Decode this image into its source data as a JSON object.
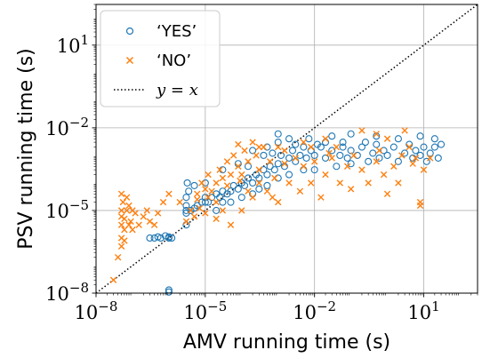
{
  "chart_data": {
    "type": "scatter",
    "xlabel": "AMV running time (s)",
    "ylabel": "PSV running time (s)",
    "x_scale": "log",
    "y_scale": "log",
    "xlim": [
      1e-08,
      300
    ],
    "ylim": [
      1e-08,
      300
    ],
    "x_ticks": [
      {
        "value": 1e-08,
        "base": "10",
        "exp": "−8"
      },
      {
        "value": 1e-05,
        "base": "10",
        "exp": "−5"
      },
      {
        "value": 0.01,
        "base": "10",
        "exp": "−2"
      },
      {
        "value": 10,
        "base": "10",
        "exp": "1"
      }
    ],
    "y_ticks": [
      {
        "value": 1e-08,
        "base": "10",
        "exp": "−8"
      },
      {
        "value": 1e-05,
        "base": "10",
        "exp": "−5"
      },
      {
        "value": 0.01,
        "base": "10",
        "exp": "−2"
      },
      {
        "value": 10,
        "base": "10",
        "exp": "1"
      }
    ],
    "grid": true,
    "legend_position": "top-left",
    "series": [
      {
        "name": "‘YES’",
        "marker": "circle",
        "color": "#1f77b4",
        "points": [
          [
            1e-06,
            1.1e-08
          ],
          [
            1e-06,
            1.3e-08
          ],
          [
            3e-07,
            1e-06
          ],
          [
            4e-07,
            1e-06
          ],
          [
            5e-07,
            1.1e-06
          ],
          [
            6e-07,
            1e-06
          ],
          [
            8e-07,
            1.2e-06
          ],
          [
            1e-06,
            1e-06
          ],
          [
            1e-06,
            1.1e-06
          ],
          [
            1.2e-06,
            1e-06
          ],
          [
            3e-06,
            3e-06
          ],
          [
            3e-06,
            8e-06
          ],
          [
            3e-06,
            1.5e-05
          ],
          [
            3e-06,
            3e-05
          ],
          [
            3.5e-06,
            5e-05
          ],
          [
            3.2e-06,
            0.0001
          ],
          [
            3e-06,
            1e-05
          ],
          [
            4e-06,
            1e-05
          ],
          [
            5e-06,
            1.2e-05
          ],
          [
            6e-06,
            1.5e-05
          ],
          [
            8e-06,
            2e-05
          ],
          [
            1e-05,
            2e-05
          ],
          [
            1e-05,
            3e-05
          ],
          [
            1.2e-05,
            2e-05
          ],
          [
            1.5e-05,
            3e-05
          ],
          [
            2e-05,
            4e-05
          ],
          [
            2e-05,
            1e-05
          ],
          [
            2.5e-05,
            3e-05
          ],
          [
            3e-05,
            5e-05
          ],
          [
            3e-05,
            2e-05
          ],
          [
            4e-05,
            4e-05
          ],
          [
            5e-05,
            5e-05
          ],
          [
            5e-05,
            2e-05
          ],
          [
            6e-05,
            8e-05
          ],
          [
            8e-05,
            6e-05
          ],
          [
            0.0001,
            0.0001
          ],
          [
            0.0001,
            3e-05
          ],
          [
            0.00012,
            8e-05
          ],
          [
            0.00015,
            0.00015
          ],
          [
            0.0002,
            0.0001
          ],
          [
            0.0002,
            4e-05
          ],
          [
            0.00025,
            0.0002
          ],
          [
            0.0003,
            0.00015
          ],
          [
            0.0003,
            6e-05
          ],
          [
            0.0004,
            0.0003
          ],
          [
            0.0005,
            0.0002
          ],
          [
            0.0005,
            8e-05
          ],
          [
            0.0006,
            0.0004
          ],
          [
            0.0008,
            0.0003
          ],
          [
            0.001,
            0.0005
          ],
          [
            0.001,
            0.00015
          ],
          [
            0.0012,
            0.001
          ],
          [
            0.0015,
            0.0004
          ],
          [
            0.002,
            0.0008
          ],
          [
            0.002,
            0.0002
          ],
          [
            0.0025,
            0.0015
          ],
          [
            0.003,
            0.0006
          ],
          [
            0.004,
            0.001
          ],
          [
            0.005,
            0.002
          ],
          [
            0.005,
            0.0003
          ],
          [
            0.006,
            0.0008
          ],
          [
            0.008,
            0.0015
          ],
          [
            0.01,
            0.001
          ],
          [
            0.01,
            0.0003
          ],
          [
            0.015,
            0.002
          ],
          [
            0.02,
            0.0008
          ],
          [
            0.03,
            0.0015
          ],
          [
            0.04,
            0.0004
          ],
          [
            0.05,
            0.001
          ],
          [
            0.06,
            0.002
          ],
          [
            0.08,
            0.0008
          ],
          [
            0.1,
            0.0015
          ],
          [
            0.1,
            0.0005
          ],
          [
            0.15,
            0.001
          ],
          [
            0.2,
            0.002
          ],
          [
            0.3,
            0.0006
          ],
          [
            0.4,
            0.0012
          ],
          [
            0.5,
            0.0025
          ],
          [
            0.6,
            0.0008
          ],
          [
            0.8,
            0.0015
          ],
          [
            1,
            0.001
          ],
          [
            1.5,
            0.002
          ],
          [
            2,
            0.0006
          ],
          [
            3,
            0.0012
          ],
          [
            4,
            0.0025
          ],
          [
            5,
            0.0008
          ],
          [
            6,
            0.0015
          ],
          [
            8,
            0.001
          ],
          [
            10,
            0.002
          ],
          [
            12,
            0.0006
          ],
          [
            15,
            0.0012
          ],
          [
            20,
            0.002
          ],
          [
            25,
            0.0008
          ],
          [
            30,
            0.0025
          ],
          [
            0.0002,
            0.0015
          ],
          [
            0.0005,
            0.002
          ],
          [
            0.001,
            0.003
          ],
          [
            0.002,
            0.004
          ],
          [
            0.0004,
            0.001
          ],
          [
            8e-05,
            0.0005
          ],
          [
            3e-05,
            0.0003
          ],
          [
            1e-05,
            0.0001
          ],
          [
            5e-06,
            8e-05
          ],
          [
            0.001,
            0.006
          ],
          [
            0.03,
            0.005
          ],
          [
            0.1,
            0.006
          ],
          [
            0.5,
            0.005
          ],
          [
            2,
            0.004
          ],
          [
            8,
            0.005
          ],
          [
            20,
            0.004
          ],
          [
            0.003,
            0.0025
          ],
          [
            0.06,
            0.003
          ],
          [
            0.00015,
            0.0004
          ],
          [
            0.0007,
            0.0012
          ],
          [
            0.02,
            0.003
          ],
          [
            0.007,
            0.004
          ],
          [
            0.012,
            0.0025
          ],
          [
            0.25,
            0.003
          ]
        ]
      },
      {
        "name": "‘NO’",
        "marker": "x",
        "color": "#ff7f0e",
        "points": [
          [
            3e-08,
            3e-08
          ],
          [
            4e-08,
            2e-07
          ],
          [
            5e-08,
            1e-06
          ],
          [
            5e-08,
            3e-06
          ],
          [
            5e-08,
            6e-06
          ],
          [
            5e-08,
            1e-05
          ],
          [
            5.5e-08,
            2e-05
          ],
          [
            6e-08,
            5e-06
          ],
          [
            6e-08,
            2e-06
          ],
          [
            7e-08,
            1e-05
          ],
          [
            7e-08,
            3e-05
          ],
          [
            8e-08,
            1.5e-05
          ],
          [
            9e-08,
            4e-06
          ],
          [
            1e-07,
            1e-05
          ],
          [
            1e-07,
            2e-06
          ],
          [
            1.2e-07,
            8e-06
          ],
          [
            5e-08,
            5e-07
          ],
          [
            6e-08,
            8e-07
          ],
          [
            8e-08,
            3e-06
          ],
          [
            5e-08,
            4e-05
          ],
          [
            1.5e-07,
            3e-06
          ],
          [
            2e-07,
            6e-06
          ],
          [
            2.5e-07,
            1e-05
          ],
          [
            3e-07,
            4e-06
          ],
          [
            4e-07,
            3e-06
          ],
          [
            5e-07,
            8e-06
          ],
          [
            7e-07,
            2e-05
          ],
          [
            1e-06,
            4e-05
          ],
          [
            2e-06,
            2e-05
          ],
          [
            3e-06,
            4e-06
          ],
          [
            4e-06,
            1e-05
          ],
          [
            5e-06,
            6e-06
          ],
          [
            6e-06,
            4e-05
          ],
          [
            8e-06,
            0.0001
          ],
          [
            1e-05,
            6e-05
          ],
          [
            1e-05,
            8e-06
          ],
          [
            1.2e-05,
            0.0002
          ],
          [
            1.5e-05,
            5e-05
          ],
          [
            2e-05,
            0.0001
          ],
          [
            2e-05,
            5e-06
          ],
          [
            2.5e-05,
            0.0003
          ],
          [
            3e-05,
            0.00015
          ],
          [
            3e-05,
            1e-05
          ],
          [
            4e-05,
            0.0006
          ],
          [
            5e-05,
            0.0002
          ],
          [
            5e-05,
            3e-06
          ],
          [
            6e-05,
            0.001
          ],
          [
            8e-05,
            0.0004
          ],
          [
            0.0001,
            0.0002
          ],
          [
            0.0001,
            1e-05
          ],
          [
            0.00012,
            0.0015
          ],
          [
            0.00015,
            0.0006
          ],
          [
            0.0002,
            0.003
          ],
          [
            0.0002,
            3e-05
          ],
          [
            0.00025,
            0.001
          ],
          [
            0.0003,
            0.0003
          ],
          [
            0.0004,
            0.002
          ],
          [
            0.0005,
            5e-05
          ],
          [
            0.0006,
            0.0006
          ],
          [
            0.0008,
            0.00015
          ],
          [
            0.001,
            0.002
          ],
          [
            0.001,
            2e-05
          ],
          [
            0.0015,
            0.0005
          ],
          [
            0.002,
            0.0001
          ],
          [
            0.003,
            0.0008
          ],
          [
            0.004,
            5e-05
          ],
          [
            0.005,
            0.0004
          ],
          [
            0.008,
            0.0001
          ],
          [
            0.01,
            0.0006
          ],
          [
            0.015,
            3e-05
          ],
          [
            0.02,
            0.0002
          ],
          [
            0.03,
            0.0008
          ],
          [
            0.05,
            0.0001
          ],
          [
            0.08,
            0.0004
          ],
          [
            0.1,
            6e-05
          ],
          [
            0.2,
            0.0003
          ],
          [
            0.3,
            0.0001
          ],
          [
            0.5,
            0.0006
          ],
          [
            0.8,
            0.0002
          ],
          [
            1,
            4e-05
          ],
          [
            1.5,
            0.0004
          ],
          [
            2,
            0.0001
          ],
          [
            3,
            0.008
          ],
          [
            4,
            0.002
          ],
          [
            5,
            0.0005
          ],
          [
            8,
            2e-05
          ],
          [
            8,
            1.5e-05
          ],
          [
            10,
            0.0003
          ],
          [
            15,
            0.0008
          ],
          [
            0.2,
            0.008
          ],
          [
            0.5,
            0.006
          ],
          [
            1,
            0.004
          ],
          [
            0.02,
            0.004
          ],
          [
            0.005,
            0.003
          ],
          [
            0.0003,
            0.002
          ],
          [
            8e-05,
            0.0025
          ],
          [
            0.0003,
            0.0001
          ],
          [
            0.0007,
            3e-05
          ],
          [
            2e-05,
            2e-05
          ],
          [
            7e-06,
            1.2e-05
          ],
          [
            0.00015,
            5e-05
          ],
          [
            0.04,
            0.002
          ],
          [
            0.12,
            0.001
          ],
          [
            0.6,
            0.0015
          ],
          [
            2.5,
            0.001
          ],
          [
            6,
            0.0008
          ],
          [
            0.0015,
            0.0015
          ],
          [
            6e-06,
            2.5e-05
          ],
          [
            1.2e-05,
            3e-05
          ],
          [
            4e-05,
            8e-05
          ],
          [
            9e-05,
            0.00012
          ],
          [
            0.025,
            0.0012
          ],
          [
            0.008,
            0.002
          ]
        ]
      },
      {
        "name": "y = x",
        "marker": "dotted-line",
        "color": "#000000"
      }
    ]
  }
}
